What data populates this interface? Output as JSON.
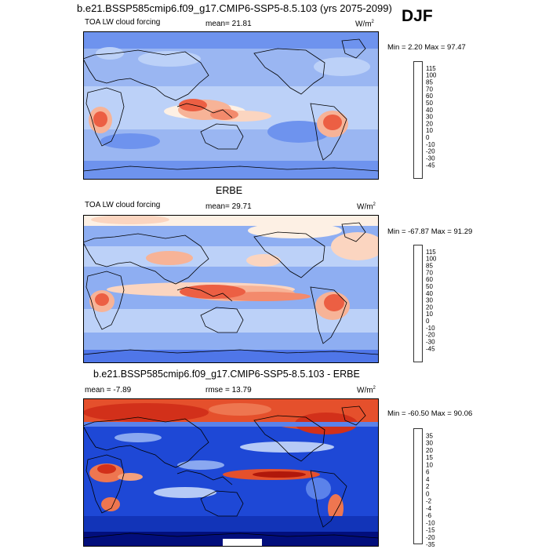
{
  "figure": {
    "main_title": "b.e21.BSSP585cmip6.f09_g17.CMIP6-SSP5-8.5.103 (yrs 2075-2099)",
    "season": "DJF"
  },
  "colors": {
    "field_scale": [
      "#020e7c",
      "#1636c4",
      "#2f56dc",
      "#4f76e8",
      "#6e93ee",
      "#93b2f4",
      "#bcd1f8",
      "#e4ecfb",
      "#fdf0e4",
      "#fbd5c0",
      "#f7b397",
      "#f38a6c",
      "#ec5f43",
      "#dd3a1f",
      "#c01a0b",
      "#960806",
      "#700000"
    ],
    "diff_scale": [
      "#020e7c",
      "#1234b8",
      "#1e48d6",
      "#3562e2",
      "#5b82ea",
      "#8aa8f0",
      "#b6caf6",
      "#e0e9fb",
      "#fcebe0",
      "#f9c9b0",
      "#f4a07c",
      "#ee7650",
      "#e5502c",
      "#d2301a",
      "#b0180b",
      "#8a0606"
    ]
  },
  "chart_data": [
    {
      "type": "heatmap",
      "panel": "model",
      "variable_label": "TOA LW cloud forcing",
      "stat_text": "mean=  21.81",
      "units_base": "W/m",
      "units_exp": "2",
      "minmax_text": "Min =   2.20 Max =  97.47",
      "colorbar_labels": [
        "115",
        "100",
        "85",
        "70",
        "60",
        "50",
        "40",
        "30",
        "20",
        "10",
        "0",
        "-10",
        "-20",
        "-30",
        "-45"
      ]
    },
    {
      "type": "heatmap",
      "panel": "obs",
      "title": "ERBE",
      "variable_label": "TOA LW cloud forcing",
      "stat_text": "mean=  29.71",
      "units_base": "W/m",
      "units_exp": "2",
      "minmax_text": "Min = -67.87 Max =  91.29",
      "colorbar_labels": [
        "115",
        "100",
        "85",
        "70",
        "60",
        "50",
        "40",
        "30",
        "20",
        "10",
        "0",
        "-10",
        "-20",
        "-30",
        "-45"
      ]
    },
    {
      "type": "heatmap",
      "panel": "difference",
      "title": "b.e21.BSSP585cmip6.f09_g17.CMIP6-SSP5-8.5.103 - ERBE",
      "mean_text": "mean =  -7.89",
      "rmse_text": "rmse =  13.79",
      "units_base": "W/m",
      "units_exp": "2",
      "minmax_text": "Min = -60.50 Max =  90.06",
      "colorbar_labels": [
        "35",
        "30",
        "20",
        "15",
        "10",
        "6",
        "4",
        "2",
        "0",
        "-2",
        "-4",
        "-6",
        "-10",
        "-15",
        "-20",
        "-35"
      ]
    }
  ]
}
